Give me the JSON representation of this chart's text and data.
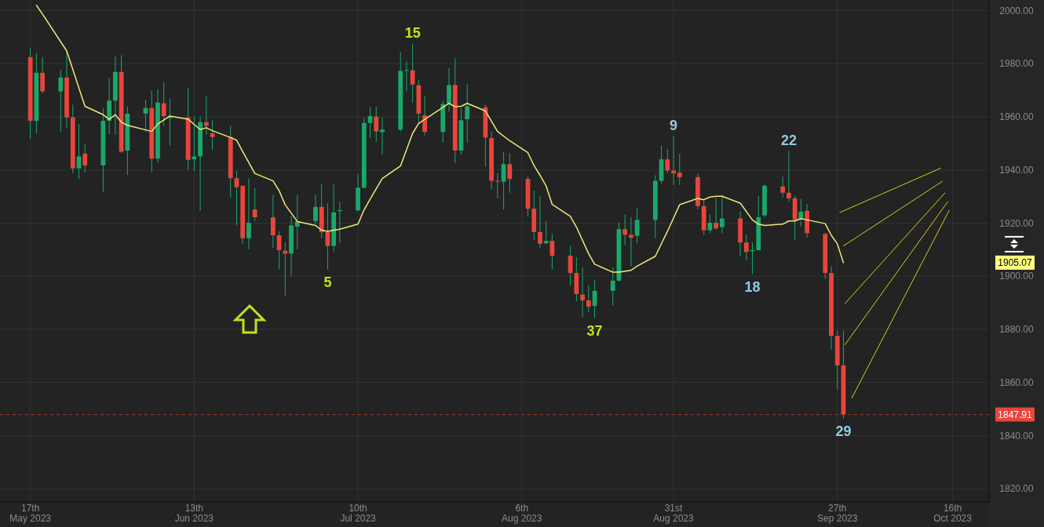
{
  "chart_data": {
    "type": "candlestick",
    "x": [
      "2023-05-17",
      "2023-05-18",
      "2023-05-19",
      "2023-05-22",
      "2023-05-23",
      "2023-05-24",
      "2023-05-25",
      "2023-05-26",
      "2023-05-29",
      "2023-05-30",
      "2023-05-31",
      "2023-06-01",
      "2023-06-02",
      "2023-06-05",
      "2023-06-06",
      "2023-06-07",
      "2023-06-08",
      "2023-06-09",
      "2023-06-12",
      "2023-06-13",
      "2023-06-14",
      "2023-06-15",
      "2023-06-16",
      "2023-06-19",
      "2023-06-20",
      "2023-06-21",
      "2023-06-22",
      "2023-06-23",
      "2023-06-26",
      "2023-06-27",
      "2023-06-28",
      "2023-06-29",
      "2023-06-30",
      "2023-07-03",
      "2023-07-04",
      "2023-07-05",
      "2023-07-06",
      "2023-07-07",
      "2023-07-10",
      "2023-07-11",
      "2023-07-12",
      "2023-07-13",
      "2023-07-14",
      "2023-07-17",
      "2023-07-18",
      "2023-07-19",
      "2023-07-20",
      "2023-07-21",
      "2023-07-24",
      "2023-07-25",
      "2023-07-26",
      "2023-07-27",
      "2023-07-28",
      "2023-07-31",
      "2023-08-01",
      "2023-08-02",
      "2023-08-03",
      "2023-08-04",
      "2023-08-07",
      "2023-08-08",
      "2023-08-09",
      "2023-08-10",
      "2023-08-11",
      "2023-08-14",
      "2023-08-15",
      "2023-08-16",
      "2023-08-17",
      "2023-08-18",
      "2023-08-21",
      "2023-08-22",
      "2023-08-23",
      "2023-08-24",
      "2023-08-25",
      "2023-08-28",
      "2023-08-29",
      "2023-08-30",
      "2023-08-31",
      "2023-09-01",
      "2023-09-04",
      "2023-09-05",
      "2023-09-06",
      "2023-09-07",
      "2023-09-08",
      "2023-09-11",
      "2023-09-12",
      "2023-09-13",
      "2023-09-14",
      "2023-09-15",
      "2023-09-18",
      "2023-09-19",
      "2023-09-20",
      "2023-09-21",
      "2023-09-22",
      "2023-09-25",
      "2023-09-26",
      "2023-09-27",
      "2023-09-28"
    ],
    "ohlc": [
      [
        1982.5,
        1985.9,
        1951.7,
        1958.5
      ],
      [
        1958.5,
        1984,
        1953.8,
        1976.6
      ],
      [
        1976.6,
        1982.5,
        1968.8,
        1969.6
      ],
      [
        1969.6,
        1977.7,
        1954.3,
        1974.8
      ],
      [
        1974.8,
        1984.8,
        1955.9,
        1959.8
      ],
      [
        1959.8,
        1964.6,
        1938.7,
        1940.6
      ],
      [
        1940.6,
        1957.3,
        1936.6,
        1945.1
      ],
      [
        1946.1,
        1949.6,
        1939,
        1941.7
      ],
      [
        1941.7,
        1963.3,
        1931.7,
        1958.5
      ],
      [
        1958.5,
        1974.8,
        1953.5,
        1966.1
      ],
      [
        1966.1,
        1982.9,
        1953.3,
        1976.9
      ],
      [
        1976.9,
        1983.2,
        1946.4,
        1946.9
      ],
      [
        1947.3,
        1964,
        1938,
        1961.2
      ],
      [
        1961.2,
        1966.4,
        1954.3,
        1963.3
      ],
      [
        1963.3,
        1969.9,
        1939,
        1944.3
      ],
      [
        1944.3,
        1970.3,
        1942.7,
        1965.4
      ],
      [
        1965.1,
        1973,
        1956.6,
        1960.3
      ],
      [
        1959.5,
        1966.7,
        1949.1,
        1960
      ],
      [
        1959.8,
        1970.9,
        1940.1,
        1943.8
      ],
      [
        1944,
        1960.1,
        1939.6,
        1945.1
      ],
      [
        1945.1,
        1960.1,
        1924.6,
        1958
      ],
      [
        1958,
        1967.8,
        1953.3,
        1956.6
      ],
      [
        1953.8,
        1958.7,
        1947.5,
        1952.4
      ],
      [
        1952.4,
        1956.6,
        1929.6,
        1936.9
      ],
      [
        1936.9,
        1939.6,
        1919.1,
        1933.5
      ],
      [
        1934,
        1934.3,
        1912.2,
        1914.3
      ],
      [
        1914.3,
        1936.9,
        1910.1,
        1920.1
      ],
      [
        1925.1,
        1933.1,
        1920.8,
        1922.2
      ],
      [
        1922.2,
        1930.6,
        1910.6,
        1915.4
      ],
      [
        1915.4,
        1916.9,
        1902.5,
        1909.8
      ],
      [
        1909.6,
        1912.7,
        1892.7,
        1908.5
      ],
      [
        1908.5,
        1922.7,
        1900.1,
        1919.1
      ],
      [
        1918.7,
        1930.6,
        1910.1,
        1920.6
      ],
      [
        1920.8,
        1930.6,
        1919.6,
        1926.1
      ],
      [
        1926.1,
        1934.8,
        1914.3,
        1916.6
      ],
      [
        1916.6,
        1927.5,
        1902.5,
        1911.4
      ],
      [
        1911.4,
        1934.5,
        1909.3,
        1924
      ],
      [
        1924.5,
        1928,
        1912.4,
        1924.9
      ],
      [
        1924.8,
        1938.5,
        1924.3,
        1933.3
      ],
      [
        1933.3,
        1959.6,
        1933.1,
        1957.7
      ],
      [
        1957.7,
        1963.8,
        1952,
        1960.3
      ],
      [
        1960.1,
        1963.8,
        1950.6,
        1954.5
      ],
      [
        1954.3,
        1959.8,
        1945.9,
        1955.2
      ],
      [
        1955.2,
        1984.3,
        1954.5,
        1977.3
      ],
      [
        1977.3,
        1980.8,
        1969.6,
        1977.6
      ],
      [
        1977.5,
        1987.5,
        1965.4,
        1972.2
      ],
      [
        1971.9,
        1973.8,
        1957.5,
        1961.2
      ],
      [
        1960.6,
        1967.8,
        1953,
        1954.3
      ],
      [
        1954.3,
        1966.1,
        1950.3,
        1964.8
      ],
      [
        1965.1,
        1978.3,
        1961.9,
        1972
      ],
      [
        1972,
        1982.2,
        1942.5,
        1947.3
      ],
      [
        1947.3,
        1963.3,
        1945.7,
        1958.7
      ],
      [
        1959.1,
        1972.4,
        1950.3,
        1964
      ],
      [
        1963.6,
        1964.6,
        1941.2,
        1952.2
      ],
      [
        1952,
        1954.5,
        1932.7,
        1935.9
      ],
      [
        1935.9,
        1938.7,
        1929.3,
        1935.7
      ],
      [
        1935.6,
        1946.7,
        1925.1,
        1942.2
      ],
      [
        1942.2,
        1946.4,
        1931.4,
        1936.6
      ],
      [
        1936.6,
        1937.5,
        1922.5,
        1925.4
      ],
      [
        1925.4,
        1932.2,
        1913.5,
        1916.6
      ],
      [
        1916.6,
        1930.1,
        1910.6,
        1912.2
      ],
      [
        1912.4,
        1920.8,
        1912,
        1913.3
      ],
      [
        1913.3,
        1915.9,
        1902.5,
        1907.7
      ],
      [
        1907.7,
        1911.4,
        1896.4,
        1901.2
      ],
      [
        1901.2,
        1907.2,
        1890.6,
        1893.3
      ],
      [
        1893.1,
        1903.3,
        1884.6,
        1890.9
      ],
      [
        1890.9,
        1896.6,
        1886.4,
        1888.5
      ],
      [
        1888.8,
        1898.7,
        1884.3,
        1894.5
      ],
      [
        1894.5,
        1903.3,
        1889,
        1898.3
      ],
      [
        1898.3,
        1920.1,
        1898,
        1917.7
      ],
      [
        1917.7,
        1923.3,
        1911.7,
        1915.6
      ],
      [
        1915.6,
        1922.2,
        1903.8,
        1914.5
      ],
      [
        1915.2,
        1925.7,
        1912.4,
        1921.2
      ],
      [
        1921.2,
        1938,
        1914.3,
        1935.9
      ],
      [
        1935.9,
        1949.1,
        1934.8,
        1944
      ],
      [
        1944,
        1948,
        1938.7,
        1939.8
      ],
      [
        1939.8,
        1952.7,
        1934.3,
        1938.7
      ],
      [
        1939,
        1946.1,
        1934.4,
        1937.3
      ],
      [
        1937.3,
        1938.7,
        1925.1,
        1926.4
      ],
      [
        1926.4,
        1928.5,
        1915.4,
        1917.3
      ],
      [
        1917.3,
        1923.3,
        1916.2,
        1920.1
      ],
      [
        1920.1,
        1929.6,
        1917.5,
        1918
      ],
      [
        1918.5,
        1930.6,
        1916.2,
        1921.7
      ],
      [
        1921.7,
        1924.3,
        1907.5,
        1912.7
      ],
      [
        1912.7,
        1915.6,
        1905.9,
        1909.1
      ],
      [
        1909.4,
        1912.7,
        1900.8,
        1909.8
      ],
      [
        1909.8,
        1930.3,
        1909.6,
        1922.2
      ],
      [
        1922.9,
        1934.5,
        1922.2,
        1934.1
      ],
      [
        1933.8,
        1937.5,
        1929.6,
        1931.4
      ],
      [
        1931.4,
        1947.2,
        1928,
        1929.3
      ],
      [
        1929.3,
        1930.3,
        1913.8,
        1921.2
      ],
      [
        1921.5,
        1929.1,
        1918.7,
        1924.3
      ],
      [
        1924.6,
        1927.2,
        1914.5,
        1916.2
      ],
      [
        1915.9,
        1916.4,
        1899,
        1901.2
      ],
      [
        1901.2,
        1903.8,
        1872.4,
        1877.5
      ],
      [
        1877.5,
        1879.4,
        1857.5,
        1866.4
      ],
      [
        1866.4,
        1879.6,
        1846.4,
        1847.91
      ]
    ],
    "series": [
      {
        "type": "line",
        "color": "#f0e878",
        "x": [
          "2023-05-18",
          "2023-05-19",
          "2023-05-23",
          "2023-05-26",
          "2023-05-29",
          "2023-05-30",
          "2023-05-31",
          "2023-06-01",
          "2023-06-02",
          "2023-06-06",
          "2023-06-07",
          "2023-06-09",
          "2023-06-12",
          "2023-06-14",
          "2023-06-15",
          "2023-06-16",
          "2023-06-19",
          "2023-06-20",
          "2023-06-21",
          "2023-06-23",
          "2023-06-26",
          "2023-06-27",
          "2023-06-28",
          "2023-06-30",
          "2023-07-03",
          "2023-07-04",
          "2023-07-05",
          "2023-07-07",
          "2023-07-10",
          "2023-07-11",
          "2023-07-12",
          "2023-07-14",
          "2023-07-17",
          "2023-07-19",
          "2023-07-20",
          "2023-07-24",
          "2023-07-25",
          "2023-07-26",
          "2023-07-27",
          "2023-07-28",
          "2023-07-31",
          "2023-08-02",
          "2023-08-04",
          "2023-08-07",
          "2023-08-08",
          "2023-08-09",
          "2023-08-10",
          "2023-08-11",
          "2023-08-14",
          "2023-08-15",
          "2023-08-17",
          "2023-08-18",
          "2023-08-21",
          "2023-08-22",
          "2023-08-24",
          "2023-08-25",
          "2023-08-28",
          "2023-08-30",
          "2023-09-01",
          "2023-09-04",
          "2023-09-05",
          "2023-09-06",
          "2023-09-07",
          "2023-09-08",
          "2023-09-11",
          "2023-09-13",
          "2023-09-14",
          "2023-09-15",
          "2023-09-18",
          "2023-09-19",
          "2023-09-20",
          "2023-09-21",
          "2023-09-22",
          "2023-09-25",
          "2023-09-26",
          "2023-09-27",
          "2023-09-28"
        ],
        "values": [
          2002,
          1998.7,
          1984.8,
          1964,
          1960.8,
          1959.1,
          1960.8,
          1958,
          1956.8,
          1954.5,
          1957.3,
          1960.3,
          1959.1,
          1955.2,
          1955.9,
          1954.8,
          1952.2,
          1951.2,
          1946.9,
          1938.7,
          1935.9,
          1932.2,
          1926.9,
          1920.6,
          1919.1,
          1917.3,
          1916.9,
          1917.7,
          1919.6,
          1925,
          1929,
          1936.8,
          1941.5,
          1953.8,
          1957.5,
          1963.6,
          1965.1,
          1963.8,
          1964,
          1965.1,
          1962.2,
          1954.5,
          1951,
          1946.5,
          1941.7,
          1938,
          1934,
          1927,
          1922.5,
          1918.5,
          1908.5,
          1904.5,
          1901.5,
          1901.5,
          1902.2,
          1903.8,
          1907.5,
          1916.9,
          1926.9,
          1929.3,
          1928.8,
          1929.8,
          1930.1,
          1930.1,
          1927.5,
          1921.2,
          1919.6,
          1919.1,
          1919.6,
          1920.8,
          1920.8,
          1921.7,
          1921.2,
          1919.8,
          1915.4,
          1912.2,
          1905.1
        ]
      },
      {
        "type": "line",
        "color": "#d8cc1c",
        "x": [
          "2023-09-27T10:00",
          "2023-10-14T01:00"
        ],
        "values": [
          1924,
          1940.7
        ]
      },
      {
        "type": "line",
        "color": "#d8cc1c",
        "x": [
          "2023-09-28T00:00",
          "2023-10-14T07:00"
        ],
        "values": [
          1911.4,
          1935.7
        ]
      },
      {
        "type": "line",
        "color": "#d8cc1c",
        "x": [
          "2023-09-28T06:00",
          "2023-10-14T17:00"
        ],
        "values": [
          1889.7,
          1931.3
        ]
      },
      {
        "type": "line",
        "color": "#d8cc1c",
        "x": [
          "2023-09-28T06:00",
          "2023-10-15T05:00"
        ],
        "values": [
          1874.2,
          1928.1
        ]
      },
      {
        "type": "line",
        "color": "#d8cc1c",
        "x": [
          "2023-09-29T09:00",
          "2023-10-15T10:00"
        ],
        "values": [
          1854.1,
          1924.7
        ]
      }
    ],
    "xlim": [
      "2023-05-12",
      "2023-10-22"
    ],
    "ylim": [
      1815,
      2004
    ],
    "xticks": [
      {
        "value": "2023-05-17",
        "label": "17th\nMay 2023"
      },
      {
        "value": "2023-06-13",
        "label": "13th\nJun 2023"
      },
      {
        "value": "2023-07-10",
        "label": "10th\nJul 2023"
      },
      {
        "value": "2023-08-06",
        "label": "6th\nAug 2023"
      },
      {
        "value": "2023-08-31",
        "label": "31st\nAug 2023"
      },
      {
        "value": "2023-09-27",
        "label": "27th\nSep 2023"
      },
      {
        "value": "2023-10-16",
        "label": "16th\nOct 2023"
      }
    ],
    "yticks": [
      {
        "value": 1820,
        "label": "1820.00"
      },
      {
        "value": 1840,
        "label": "1840.00"
      },
      {
        "value": 1860,
        "label": "1860.00"
      },
      {
        "value": 1880,
        "label": "1880.00"
      },
      {
        "value": 1900,
        "label": "1900.00"
      },
      {
        "value": 1920,
        "label": "1920.00"
      },
      {
        "value": 1940,
        "label": "1940.00"
      },
      {
        "value": 1960,
        "label": "1960.00"
      },
      {
        "value": 1980,
        "label": "1980.00"
      },
      {
        "value": 2000,
        "label": "2000.00"
      }
    ],
    "grid": true,
    "ref_lines": [
      {
        "axis": "y",
        "value": 1847.91,
        "label": "1847.91",
        "color": "#e8453c",
        "line_style": "dashed"
      }
    ],
    "annotations": [
      {
        "text": "15",
        "x": "2023-07-19",
        "y": 1987.5
      },
      {
        "text": "5",
        "x": "2023-07-05",
        "y": 1902.5
      },
      {
        "text": "37",
        "x": "2023-08-18",
        "y": 1884.3
      },
      {
        "text": "9",
        "x": "2023-08-31",
        "y": 1952.7
      },
      {
        "text": "22",
        "x": "2023-09-19",
        "y": 1947.2
      },
      {
        "text": "18",
        "x": "2023-09-13",
        "y": 1900.8
      },
      {
        "text": "29",
        "x": "2023-09-28",
        "y": 1846.4
      },
      "1905.07"
    ]
  }
}
